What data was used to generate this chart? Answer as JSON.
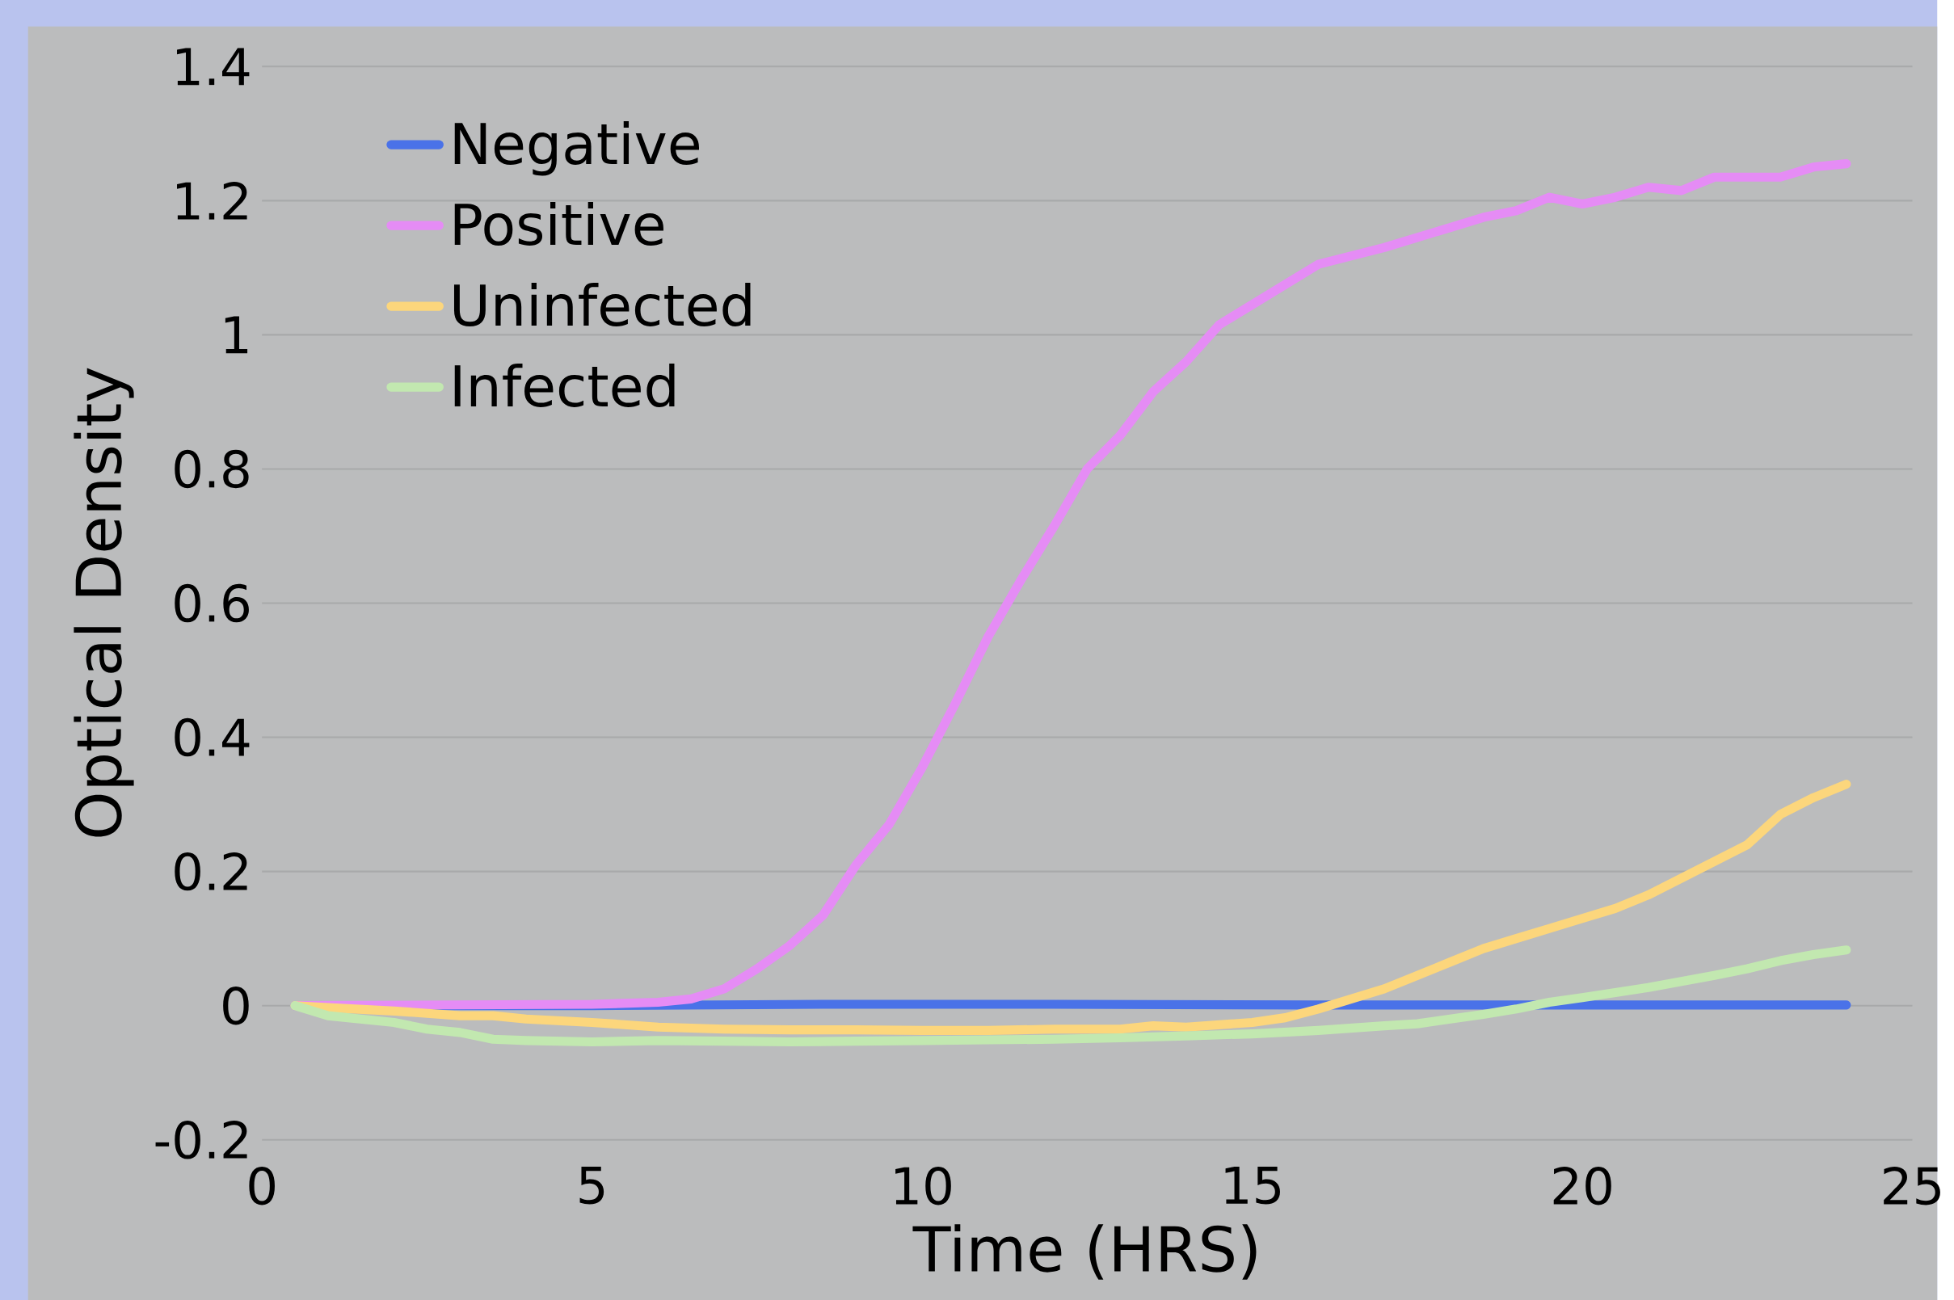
{
  "chart_data": {
    "type": "line",
    "xlabel": "Time (HRS)",
    "ylabel": "Optical Density",
    "xlim": [
      0,
      25
    ],
    "ylim": [
      -0.2,
      1.4
    ],
    "xticks": [
      0,
      5,
      10,
      15,
      20,
      25
    ],
    "yticks": [
      -0.2,
      0,
      0.2,
      0.4,
      0.6,
      0.8,
      1,
      1.2,
      1.4
    ],
    "grid": "y",
    "legend": "top left",
    "marker": "none",
    "line_style": "solid",
    "series": [
      {
        "name": "Negative",
        "color": "#4a72e8",
        "x": [
          0.5,
          5,
          8.5,
          12,
          16,
          20,
          24
        ],
        "values": [
          0,
          0,
          0.002,
          0.002,
          0.001,
          0.001,
          0.001
        ]
      },
      {
        "name": "Positive",
        "color": "#e58cf5",
        "x": [
          0.5,
          5,
          6,
          6.5,
          7,
          7.5,
          8,
          8.5,
          9,
          9.5,
          10,
          10.5,
          11,
          11.5,
          12,
          12.5,
          13,
          13.5,
          14,
          14.5,
          15,
          15.5,
          16,
          17,
          18,
          18.5,
          19,
          19.5,
          20,
          20.5,
          21,
          21.5,
          22,
          23,
          23.5,
          24
        ],
        "values": [
          0,
          0.002,
          0.005,
          0.01,
          0.025,
          0.055,
          0.09,
          0.135,
          0.21,
          0.27,
          0.355,
          0.45,
          0.55,
          0.635,
          0.715,
          0.8,
          0.85,
          0.915,
          0.96,
          1.015,
          1.045,
          1.075,
          1.105,
          1.13,
          1.16,
          1.175,
          1.185,
          1.205,
          1.195,
          1.205,
          1.22,
          1.215,
          1.235,
          1.235,
          1.25,
          1.255
        ]
      },
      {
        "name": "Uninfected",
        "color": "#fcd67c",
        "x": [
          0.5,
          1,
          2,
          3,
          3.5,
          4,
          5,
          6,
          7,
          8,
          9,
          10,
          11,
          12,
          13,
          13.5,
          14,
          15,
          15.5,
          16,
          16.5,
          17,
          17.5,
          18,
          18.5,
          19,
          19.5,
          20,
          20.5,
          21,
          21.5,
          22,
          22.5,
          23,
          23.5,
          24
        ],
        "values": [
          0,
          -0.003,
          -0.008,
          -0.015,
          -0.015,
          -0.02,
          -0.025,
          -0.032,
          -0.035,
          -0.036,
          -0.036,
          -0.037,
          -0.037,
          -0.035,
          -0.035,
          -0.03,
          -0.032,
          -0.025,
          -0.018,
          -0.005,
          0.01,
          0.025,
          0.045,
          0.065,
          0.085,
          0.1,
          0.115,
          0.13,
          0.145,
          0.165,
          0.19,
          0.215,
          0.24,
          0.285,
          0.31,
          0.33
        ]
      },
      {
        "name": "Infected",
        "color": "#c2e8b0",
        "x": [
          0.5,
          1,
          2,
          2.5,
          3,
          3.5,
          4,
          5,
          6,
          7,
          8,
          9,
          10,
          11,
          12,
          13,
          14,
          15,
          16,
          17,
          17.5,
          18,
          18.5,
          19,
          19.5,
          20,
          21,
          22,
          22.5,
          23,
          23.5,
          24
        ],
        "values": [
          0,
          -0.015,
          -0.025,
          -0.035,
          -0.04,
          -0.05,
          -0.052,
          -0.054,
          -0.052,
          -0.053,
          -0.054,
          -0.053,
          -0.052,
          -0.051,
          -0.05,
          -0.048,
          -0.045,
          -0.042,
          -0.037,
          -0.03,
          -0.027,
          -0.02,
          -0.013,
          -0.005,
          0.005,
          0.012,
          0.027,
          0.045,
          0.055,
          0.067,
          0.076,
          0.083
        ]
      }
    ]
  }
}
